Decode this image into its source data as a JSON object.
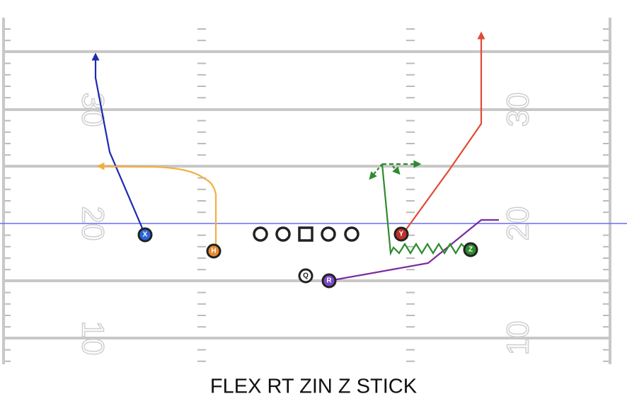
{
  "title": "FLEX RT ZIN Z STICK",
  "field": {
    "left_numbers": [
      "30",
      "20",
      "10"
    ],
    "right_numbers": [
      "30",
      "20",
      "10"
    ]
  },
  "players": [
    {
      "label": "X"
    },
    {
      "label": "H"
    },
    {
      "label": "Q"
    },
    {
      "label": "R"
    },
    {
      "label": "Y"
    },
    {
      "label": "Z"
    }
  ]
}
